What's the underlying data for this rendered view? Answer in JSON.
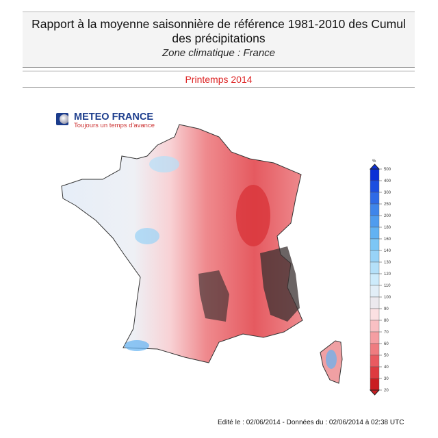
{
  "header": {
    "title": "Rapport à la moyenne saisonnière de référence 1981-2010 des Cumul des précipitations",
    "subtitle": "Zone climatique : France"
  },
  "period": "Printemps 2014",
  "logo": {
    "name": "METEO FRANCE",
    "tagline": "Toujours un temps d'avance"
  },
  "legend": {
    "unit": "%",
    "levels": [
      500,
      400,
      300,
      250,
      200,
      180,
      160,
      140,
      130,
      120,
      110,
      100,
      90,
      80,
      70,
      60,
      50,
      40,
      30,
      20
    ],
    "colors": [
      "#0b2fd6",
      "#1c4fe0",
      "#2e6ae6",
      "#3f85ea",
      "#4f9cee",
      "#62b2f2",
      "#7cc6f5",
      "#98d3f7",
      "#b4e0f9",
      "#cdebfb",
      "#e2eef7",
      "#ece9ee",
      "#fbe0e2",
      "#f9c0c3",
      "#f59ea2",
      "#ef7c80",
      "#e95a60",
      "#de3a40",
      "#c91d22"
    ]
  },
  "map": {
    "region": "France",
    "colors": {
      "dry": "#c91d22",
      "wet": "#62b2f2",
      "very_dry": "#3a3030"
    }
  },
  "footer": "Edité le : 02/06/2014 - Données du : 02/06/2014 à 02:38 UTC"
}
